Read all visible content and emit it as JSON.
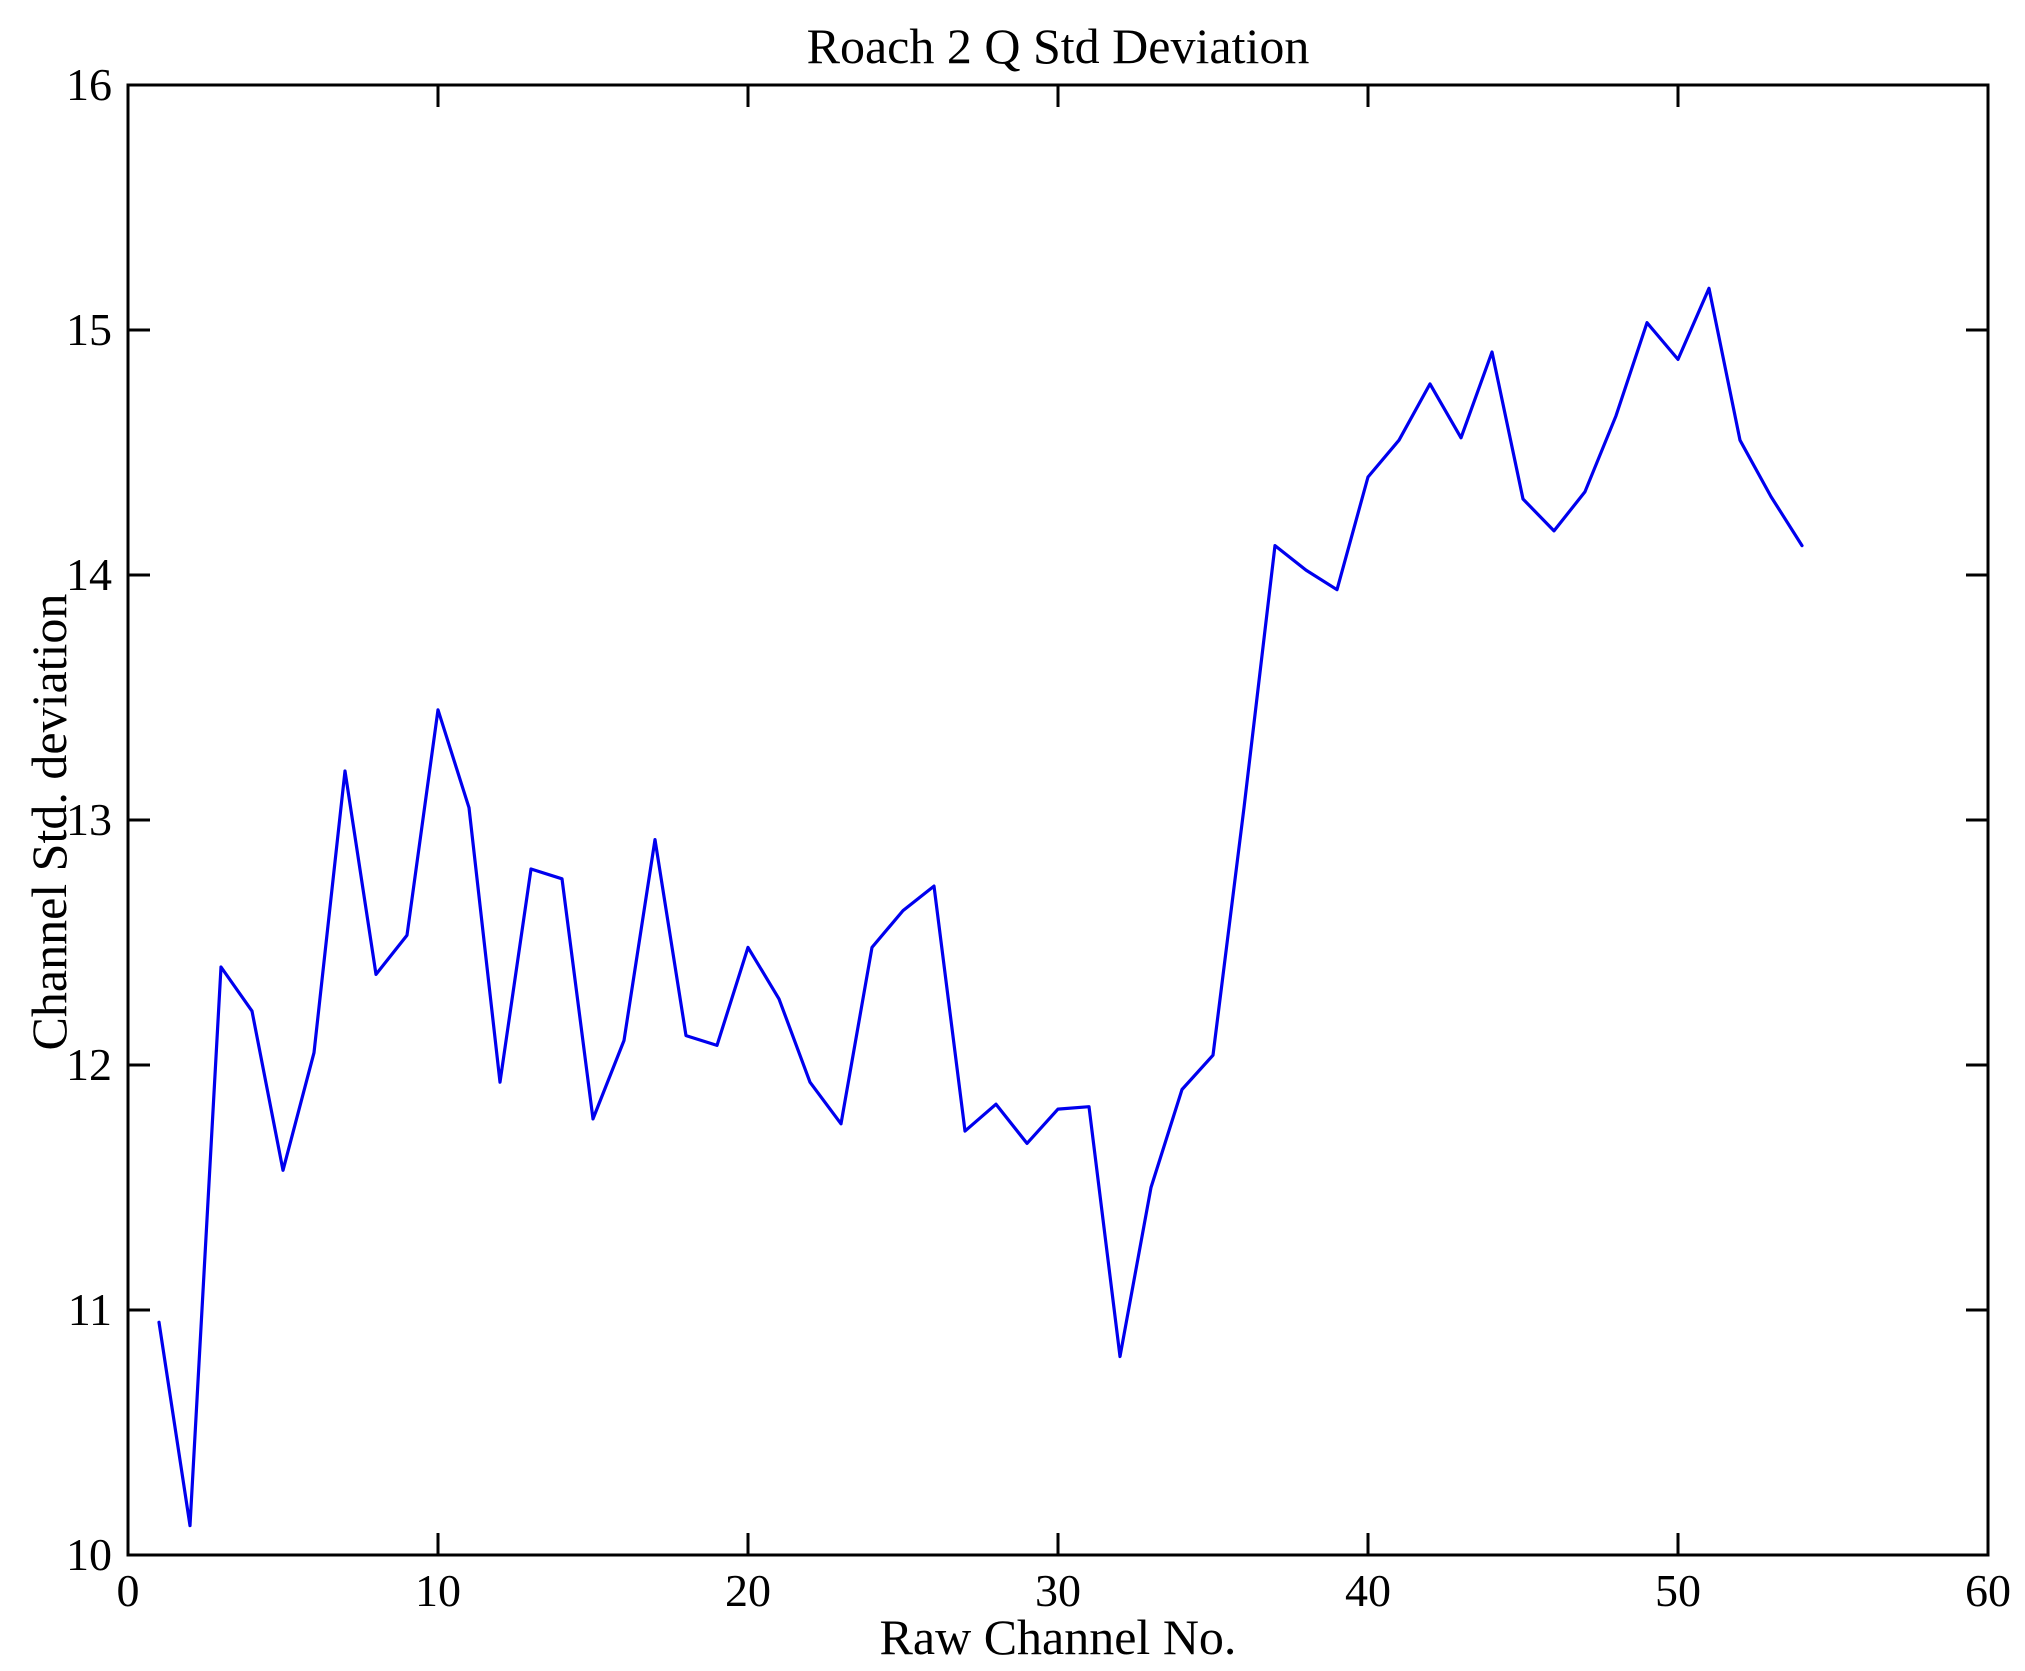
{
  "figure": {
    "background": "#ffffff",
    "axis_color": "#000000"
  },
  "chart_data": {
    "type": "line",
    "title": "Roach 2 Q Std Deviation",
    "xlabel": "Raw Channel No.",
    "ylabel": "Channel Std. deviation",
    "xlim": [
      0,
      60
    ],
    "ylim": [
      10,
      16
    ],
    "x_ticks": [
      0,
      10,
      20,
      30,
      40,
      50,
      60
    ],
    "y_ticks": [
      10,
      11,
      12,
      13,
      14,
      15,
      16
    ],
    "grid": false,
    "legend_position": "none",
    "series": [
      {
        "name": "channel-std-deviation",
        "color": "#0000ee",
        "x": [
          1,
          2,
          3,
          4,
          5,
          6,
          7,
          8,
          9,
          10,
          11,
          12,
          13,
          14,
          15,
          16,
          17,
          18,
          19,
          20,
          21,
          22,
          23,
          24,
          25,
          26,
          27,
          28,
          29,
          30,
          31,
          32,
          33,
          34,
          35,
          36,
          37,
          38,
          39,
          40,
          41,
          42,
          43,
          44,
          45,
          46,
          47,
          48,
          49,
          50,
          51,
          52,
          53,
          54
        ],
        "values": [
          10.95,
          10.12,
          12.4,
          12.22,
          11.57,
          12.05,
          13.2,
          12.37,
          12.53,
          13.45,
          13.05,
          11.93,
          12.8,
          12.76,
          11.78,
          12.1,
          12.92,
          12.12,
          12.08,
          12.48,
          12.27,
          11.93,
          11.76,
          12.48,
          12.63,
          12.73,
          11.73,
          11.84,
          11.68,
          11.82,
          11.83,
          10.81,
          11.5,
          11.9,
          12.04,
          13.05,
          14.12,
          14.02,
          13.94,
          14.4,
          14.55,
          14.78,
          14.56,
          14.91,
          14.31,
          14.18,
          14.34,
          14.65,
          15.03,
          14.88,
          15.17,
          14.55,
          14.32,
          14.12
        ]
      }
    ]
  }
}
